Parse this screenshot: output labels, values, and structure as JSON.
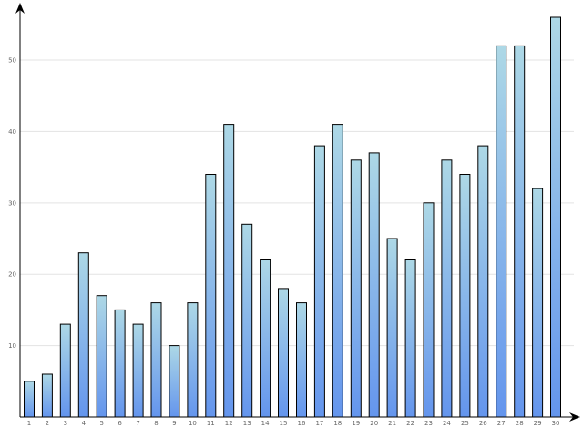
{
  "chart_data": {
    "type": "bar",
    "title": "",
    "xlabel": "",
    "ylabel": "",
    "categories": [
      "1",
      "2",
      "3",
      "4",
      "5",
      "6",
      "7",
      "8",
      "9",
      "10",
      "11",
      "12",
      "13",
      "14",
      "15",
      "16",
      "17",
      "18",
      "19",
      "20",
      "21",
      "22",
      "23",
      "24",
      "25",
      "26",
      "27",
      "28",
      "29",
      "30"
    ],
    "values": [
      5,
      6,
      13,
      23,
      17,
      15,
      13,
      16,
      10,
      16,
      34,
      41,
      27,
      22,
      18,
      16,
      38,
      41,
      36,
      37,
      25,
      22,
      30,
      36,
      34,
      38,
      52,
      52,
      32,
      56
    ],
    "ylim": [
      0,
      56
    ],
    "yticks": [
      10,
      20,
      30,
      40,
      50
    ],
    "grid": true,
    "legend": "none",
    "colors": {
      "bar_top": "#add8e6",
      "bar_bottom": "#6495ed",
      "bar_edge": "#000000",
      "grid": "#e3e3e3",
      "tick_text": "#666666"
    }
  }
}
